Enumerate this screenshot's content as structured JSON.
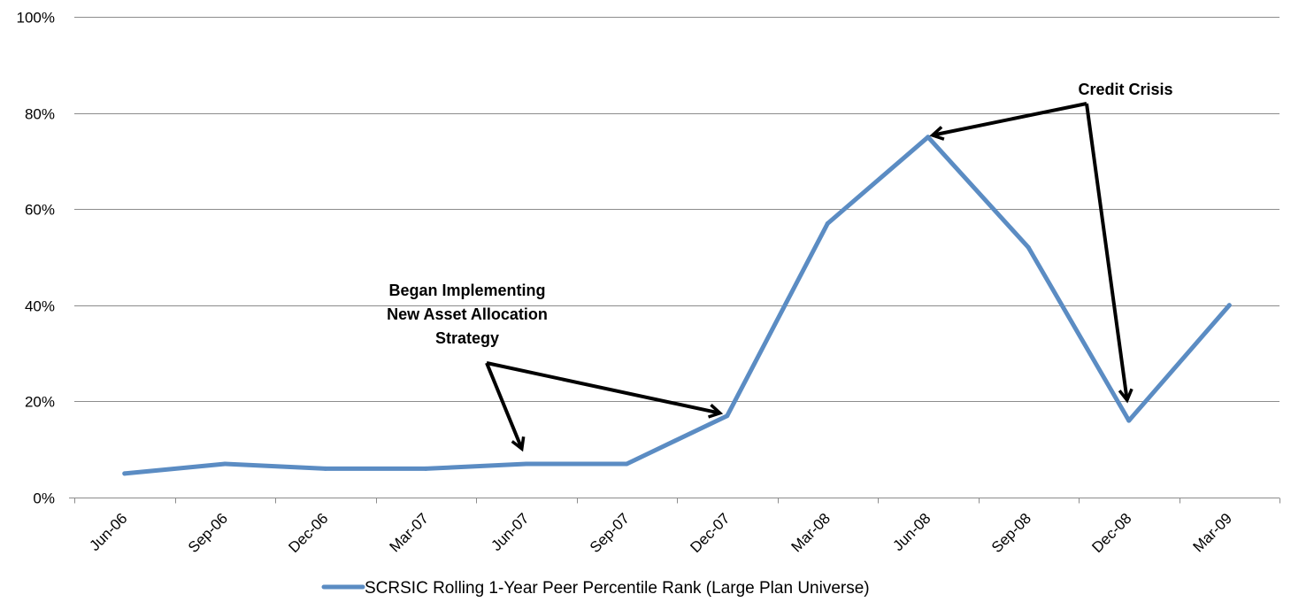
{
  "chart_data": {
    "type": "line",
    "categories": [
      "Jun-06",
      "Sep-06",
      "Dec-06",
      "Mar-07",
      "Jun-07",
      "Sep-07",
      "Dec-07",
      "Mar-08",
      "Jun-08",
      "Sep-08",
      "Dec-08",
      "Mar-09"
    ],
    "series": [
      {
        "name": "SCRSIC Rolling 1-Year Peer Percentile Rank (Large Plan Universe)",
        "color": "#5b8cc3",
        "values": [
          5,
          7,
          6,
          6,
          7,
          7,
          17,
          57,
          75,
          52,
          16,
          40
        ]
      }
    ],
    "y_ticks": [
      0,
      20,
      40,
      60,
      80,
      100
    ],
    "y_tick_labels": [
      "0%",
      "20%",
      "40%",
      "60%",
      "80%",
      "100%"
    ],
    "ylim": [
      0,
      100
    ],
    "grid": true,
    "legend": "bottom",
    "annotations": [
      {
        "lines": [
          "Began Implementing",
          "New Asset Allocation",
          "Strategy"
        ],
        "points_to": [
          "Jun-07",
          "Dec-07"
        ]
      },
      {
        "lines": [
          "Credit Crisis"
        ],
        "points_to": [
          "Jun-08",
          "Dec-08"
        ]
      }
    ]
  }
}
